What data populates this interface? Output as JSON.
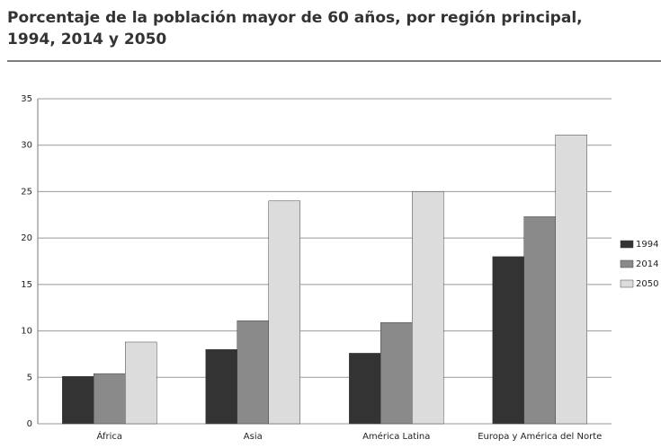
{
  "chart_data": {
    "type": "bar",
    "title": [
      "Porcentaje de la población mayor de 60 años, por región principal,",
      "1994, 2014 y 2050"
    ],
    "categories": [
      "África",
      "Asia",
      "América Latina",
      "Europa y América del Norte"
    ],
    "series": [
      {
        "name": "1994",
        "color": "#333333",
        "values": [
          5.1,
          8.0,
          7.6,
          18.0
        ]
      },
      {
        "name": "2014",
        "color": "#8a8a8a",
        "values": [
          5.4,
          11.1,
          10.9,
          22.3
        ]
      },
      {
        "name": "2050",
        "color": "#dcdcdc",
        "values": [
          8.8,
          24.0,
          25.0,
          31.1
        ]
      }
    ],
    "ylim": [
      0,
      35
    ],
    "yticks": [
      0,
      5,
      10,
      15,
      20,
      25,
      30,
      35
    ],
    "grid": true,
    "legend": "right"
  }
}
